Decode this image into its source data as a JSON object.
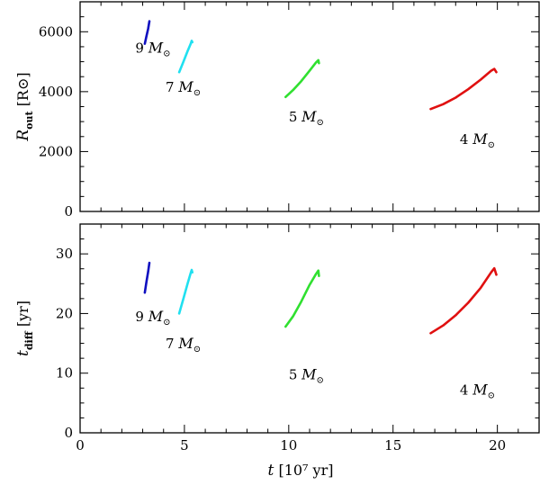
{
  "chart_data": [
    {
      "type": "line",
      "panel": "top",
      "ylabel_main": "R",
      "ylabel_sub": "out",
      "ylabel_unit": "[R⊙]",
      "xlim": [
        0,
        22
      ],
      "ylim": [
        0,
        7000
      ],
      "xticks": [
        0,
        5,
        10,
        15,
        20
      ],
      "yticks": [
        0,
        2000,
        4000,
        6000
      ],
      "series": [
        {
          "name": "9 M⊙",
          "mass": "9",
          "color": "#1010c0",
          "x": [
            3.1,
            3.18,
            3.26,
            3.32
          ],
          "y": [
            5600,
            5850,
            6100,
            6350
          ],
          "label_at": [
            2.65,
            5300
          ]
        },
        {
          "name": "7 M⊙",
          "mass": "7",
          "color": "#20e0f0",
          "x": [
            4.75,
            4.95,
            5.15,
            5.3,
            5.35,
            5.38
          ],
          "y": [
            4650,
            5000,
            5350,
            5600,
            5700,
            5650
          ],
          "label_at": [
            4.1,
            4000
          ]
        },
        {
          "name": "5 M⊙",
          "mass": "5",
          "color": "#30e030",
          "x": [
            9.85,
            10.2,
            10.6,
            11.0,
            11.3,
            11.42,
            11.45
          ],
          "y": [
            3820,
            4050,
            4350,
            4700,
            4970,
            5050,
            4950
          ],
          "label_at": [
            10.0,
            3000
          ]
        },
        {
          "name": "4 M⊙",
          "mass": "4",
          "color": "#e01010",
          "x": [
            16.8,
            17.4,
            18.0,
            18.6,
            19.2,
            19.7,
            19.85,
            19.95
          ],
          "y": [
            3420,
            3580,
            3800,
            4080,
            4400,
            4700,
            4760,
            4650
          ],
          "label_at": [
            18.2,
            2250
          ]
        }
      ]
    },
    {
      "type": "line",
      "panel": "bottom",
      "ylabel_main": "t",
      "ylabel_sub": "diff",
      "ylabel_unit": "[yr]",
      "xlabel_main": "t",
      "xlabel_unit": "[10⁷ yr]",
      "xlim": [
        0,
        22
      ],
      "ylim": [
        0,
        35
      ],
      "xticks": [
        0,
        5,
        10,
        15,
        20
      ],
      "yticks": [
        0,
        10,
        20,
        30
      ],
      "series": [
        {
          "name": "9 M⊙",
          "mass": "9",
          "color": "#1010c0",
          "x": [
            3.1,
            3.18,
            3.26,
            3.32
          ],
          "y": [
            23.5,
            25.3,
            27.0,
            28.5
          ],
          "label_at": [
            2.65,
            18.7
          ]
        },
        {
          "name": "7 M⊙",
          "mass": "7",
          "color": "#20e0f0",
          "x": [
            4.75,
            4.95,
            5.15,
            5.3,
            5.35,
            5.38
          ],
          "y": [
            20.0,
            22.5,
            25.0,
            26.8,
            27.3,
            26.9
          ],
          "label_at": [
            4.1,
            14.2
          ]
        },
        {
          "name": "5 M⊙",
          "mass": "5",
          "color": "#30e030",
          "x": [
            9.85,
            10.2,
            10.6,
            11.0,
            11.3,
            11.42,
            11.45
          ],
          "y": [
            17.8,
            19.5,
            22.0,
            24.8,
            26.6,
            27.2,
            26.3
          ],
          "label_at": [
            10.0,
            9.0
          ]
        },
        {
          "name": "4 M⊙",
          "mass": "4",
          "color": "#e01010",
          "x": [
            16.8,
            17.4,
            18.0,
            18.6,
            19.2,
            19.7,
            19.85,
            19.95
          ],
          "y": [
            16.7,
            18.0,
            19.7,
            21.8,
            24.3,
            26.9,
            27.6,
            26.5
          ],
          "label_at": [
            18.2,
            6.4
          ]
        }
      ]
    }
  ]
}
